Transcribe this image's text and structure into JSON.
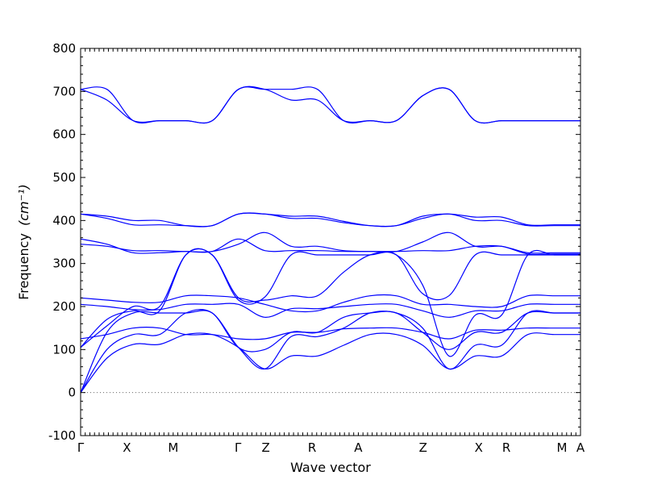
{
  "chart_data": {
    "type": "line",
    "xlabel": "Wave vector",
    "ylabel": "Frequency",
    "ylabel_unit": "(cm⁻¹)",
    "ylim": [
      -100,
      800
    ],
    "yticks": [
      -100,
      0,
      100,
      200,
      300,
      400,
      500,
      600,
      700,
      800
    ],
    "grid": false,
    "line_color": "#0000ff",
    "zero_line": {
      "y": 0,
      "style": "dotted",
      "color": "#666666"
    },
    "x_range": [
      0,
      10.8
    ],
    "high_symmetry_points": [
      {
        "label": "Γ",
        "x": 0.0
      },
      {
        "label": "X",
        "x": 1.0
      },
      {
        "label": "M",
        "x": 2.0
      },
      {
        "label": "Γ",
        "x": 3.4
      },
      {
        "label": "Z",
        "x": 4.0
      },
      {
        "label": "R",
        "x": 5.0
      },
      {
        "label": "A",
        "x": 6.0
      },
      {
        "label": "Z",
        "x": 7.4
      },
      {
        "label": "X",
        "x": 8.6
      },
      {
        "label": "R",
        "x": 9.2
      },
      {
        "label": "M",
        "x": 10.4
      },
      {
        "label": "A",
        "x": 10.8
      }
    ],
    "series": [
      {
        "values": [
          0,
          80,
          112,
          112,
          135,
          135,
          105,
          55,
          85,
          85,
          110,
          135,
          135,
          110,
          55,
          85,
          85,
          135,
          135,
          135
        ]
      },
      {
        "values": [
          0,
          100,
          135,
          135,
          185,
          185,
          105,
          55,
          130,
          130,
          150,
          185,
          185,
          150,
          55,
          110,
          110,
          185,
          185,
          185
        ]
      },
      {
        "values": [
          0,
          140,
          185,
          185,
          185,
          185,
          105,
          100,
          140,
          140,
          175,
          185,
          185,
          140,
          100,
          140,
          140,
          185,
          185,
          185
        ]
      },
      {
        "values": [
          105,
          170,
          190,
          190,
          320,
          320,
          220,
          215,
          225,
          225,
          280,
          320,
          320,
          250,
          85,
          180,
          180,
          320,
          320,
          320
        ]
      },
      {
        "values": [
          105,
          155,
          200,
          200,
          320,
          320,
          215,
          222,
          320,
          320,
          320,
          320,
          320,
          230,
          225,
          320,
          320,
          320,
          320,
          320
        ]
      },
      {
        "values": [
          125,
          135,
          150,
          150,
          135,
          135,
          125,
          125,
          140,
          140,
          148,
          150,
          150,
          140,
          125,
          145,
          145,
          150,
          150,
          150
        ]
      },
      {
        "values": [
          205,
          200,
          193,
          193,
          205,
          205,
          205,
          175,
          195,
          195,
          200,
          205,
          205,
          190,
          175,
          190,
          190,
          205,
          205,
          205
        ]
      },
      {
        "values": [
          220,
          215,
          210,
          210,
          225,
          225,
          220,
          205,
          190,
          190,
          210,
          225,
          225,
          205,
          205,
          200,
          200,
          225,
          225,
          225
        ]
      },
      {
        "values": [
          345,
          340,
          330,
          330,
          328,
          328,
          345,
          372,
          340,
          340,
          330,
          328,
          328,
          350,
          372,
          340,
          340,
          325,
          325,
          325
        ]
      },
      {
        "values": [
          357,
          345,
          325,
          325,
          328,
          328,
          357,
          330,
          330,
          330,
          328,
          328,
          328,
          330,
          330,
          340,
          340,
          322,
          322,
          322
        ]
      },
      {
        "values": [
          415,
          405,
          390,
          390,
          388,
          388,
          415,
          415,
          405,
          405,
          395,
          388,
          388,
          405,
          415,
          400,
          400,
          388,
          388,
          388
        ]
      },
      {
        "values": [
          415,
          410,
          400,
          400,
          388,
          388,
          415,
          415,
          410,
          410,
          398,
          388,
          388,
          410,
          415,
          408,
          408,
          390,
          390,
          390
        ]
      },
      {
        "values": [
          705,
          680,
          632,
          632,
          632,
          632,
          705,
          705,
          680,
          680,
          632,
          632,
          632,
          690,
          705,
          632,
          632,
          632,
          632,
          632
        ]
      },
      {
        "values": [
          705,
          705,
          632,
          632,
          632,
          632,
          705,
          705,
          705,
          705,
          632,
          632,
          632,
          690,
          705,
          632,
          632,
          632,
          632,
          632
        ]
      }
    ]
  }
}
